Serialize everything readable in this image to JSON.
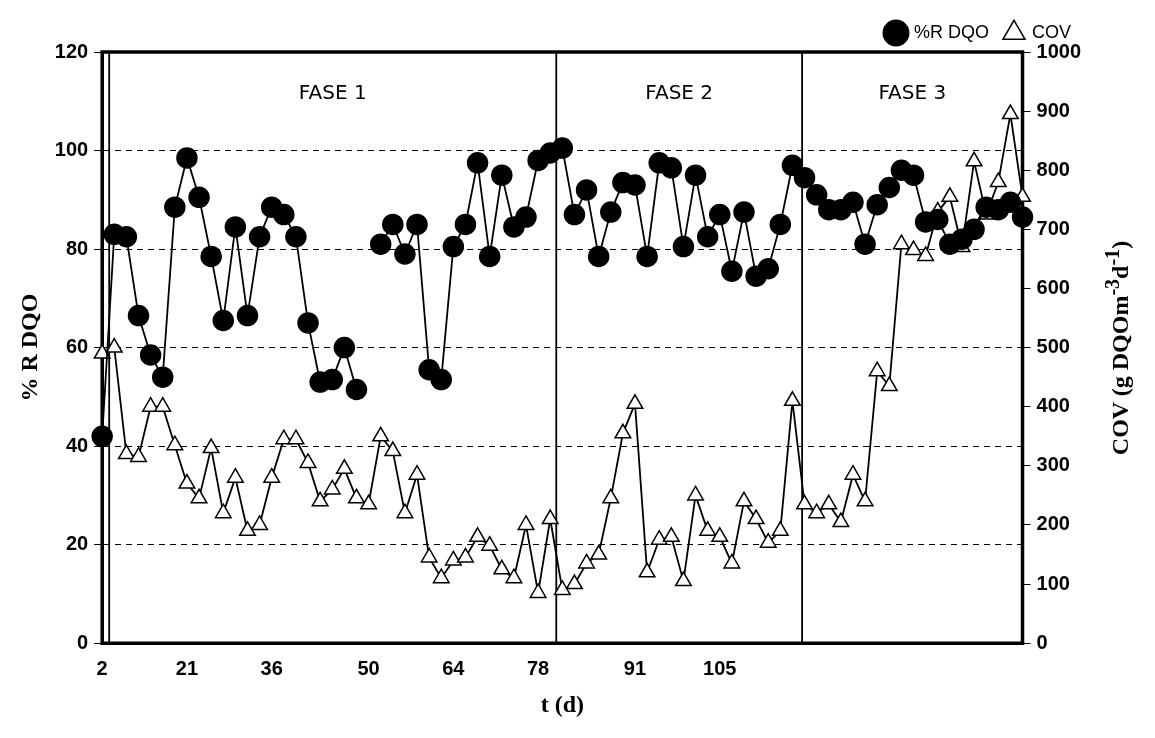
{
  "chart_data": {
    "type": "line",
    "xlabel": "t (d)",
    "ylabel": "% R DQO",
    "y2label": "COV (g DQOm$^{-3}$d$^{-1}$)",
    "categories": [
      "2",
      null,
      null,
      null,
      null,
      null,
      null,
      "21",
      null,
      null,
      null,
      null,
      null,
      null,
      "36",
      null,
      null,
      null,
      null,
      null,
      null,
      null,
      "50",
      null,
      null,
      null,
      null,
      null,
      null,
      "64",
      null,
      null,
      null,
      null,
      null,
      null,
      "78",
      null,
      null,
      null,
      null,
      null,
      null,
      null,
      "91",
      null,
      null,
      null,
      null,
      null,
      null,
      "105",
      null,
      null,
      null,
      null,
      null,
      null,
      null,
      null,
      null,
      null,
      null,
      null,
      null,
      null,
      null,
      null,
      null,
      null,
      null,
      null,
      null,
      null,
      null,
      null,
      null
    ],
    "series": [
      {
        "name": "%R DQO",
        "color": "#000000",
        "marker": "circle",
        "values": [
          42,
          83,
          82.5,
          66.5,
          58.5,
          54,
          88.5,
          98.5,
          90.5,
          78.5,
          65.5,
          84.5,
          66.5,
          82.5,
          88.5,
          87,
          82.5,
          65,
          53,
          53.5,
          60,
          51.5,
          null,
          81,
          85,
          79,
          85,
          55.5,
          53.5,
          80.5,
          85,
          97.5,
          78.5,
          95,
          84.5,
          86.5,
          98,
          99.5,
          100.5,
          87,
          92,
          78.5,
          87.5,
          93.5,
          93,
          78.5,
          97.5,
          96.5,
          80.5,
          95,
          82.5,
          87,
          75.5,
          87.5,
          74.5,
          76,
          85,
          97,
          94.5,
          91,
          88,
          88,
          89.5,
          81,
          89,
          92.5,
          96,
          95,
          85.5,
          86,
          81,
          82,
          84,
          88.5,
          88,
          89.5,
          86.5
        ]
      },
      {
        "name": "COV",
        "color": "#000000",
        "marker": "triangle",
        "axis": "y2",
        "values": [
          490,
          500,
          320,
          315,
          400,
          400,
          335,
          270,
          245,
          330,
          220,
          280,
          190,
          200,
          280,
          345,
          345,
          305,
          240,
          260,
          295,
          245,
          235,
          350,
          325,
          220,
          285,
          145,
          110,
          140,
          145,
          180,
          165,
          125,
          110,
          200,
          85,
          210,
          90,
          100,
          135,
          150,
          245,
          355,
          405,
          120,
          175,
          180,
          105,
          250,
          190,
          180,
          135,
          240,
          210,
          170,
          190,
          410,
          235,
          220,
          235,
          205,
          285,
          240,
          460,
          435,
          675,
          665,
          655,
          730,
          755,
          670,
          815,
          725,
          780,
          895,
          755
        ]
      }
    ],
    "ylim": [
      0,
      120
    ],
    "yticks": [
      0,
      20,
      40,
      60,
      80,
      100,
      120
    ],
    "y2lim": [
      0,
      1000
    ],
    "y2ticks": [
      0,
      100,
      200,
      300,
      400,
      500,
      600,
      700,
      800,
      900,
      1000
    ],
    "grid": "y",
    "legend": "top right",
    "annotations": [
      "FASE 1",
      "FASE 2",
      "FASE 3"
    ]
  }
}
